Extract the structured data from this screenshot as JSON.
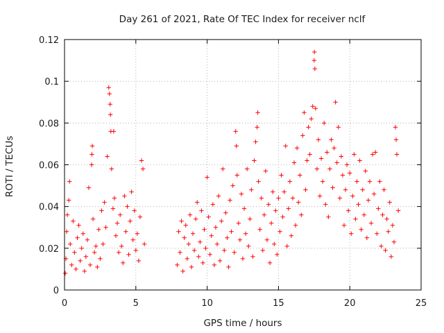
{
  "chart_data": {
    "type": "scatter",
    "title": "Day 261 of 2021, Rate Of TEC Index for receiver nclf",
    "xlabel": "GPS time / hours",
    "ylabel": "ROTI / TECUs",
    "xlim": [
      0,
      25
    ],
    "ylim": [
      0,
      0.12
    ],
    "x_ticks": [
      0,
      5,
      10,
      15,
      20,
      25
    ],
    "x_tick_labels": [
      "0",
      "5",
      "10",
      "15",
      "20",
      "25"
    ],
    "y_ticks": [
      0,
      0.02,
      0.04,
      0.06,
      0.08,
      0.1,
      0.12
    ],
    "y_tick_labels": [
      "0",
      "0.02",
      "0.04",
      "0.06",
      "0.08",
      "0.1",
      "0.12"
    ],
    "grid": true,
    "marker": "+",
    "color": "#ff0000",
    "data_gap_hours": [
      5.7,
      7.8
    ],
    "series": [
      {
        "name": "ROTI nclf",
        "note": "dense point cloud; representative sample of visible points",
        "points": [
          [
            0.05,
            0.008
          ],
          [
            0.1,
            0.015
          ],
          [
            0.15,
            0.028
          ],
          [
            0.2,
            0.036
          ],
          [
            0.3,
            0.043
          ],
          [
            0.35,
            0.052
          ],
          [
            0.4,
            0.022
          ],
          [
            0.5,
            0.012
          ],
          [
            0.6,
            0.033
          ],
          [
            0.7,
            0.018
          ],
          [
            0.8,
            0.01
          ],
          [
            0.9,
            0.025
          ],
          [
            1.0,
            0.031
          ],
          [
            1.1,
            0.014
          ],
          [
            1.2,
            0.02
          ],
          [
            1.3,
            0.027
          ],
          [
            1.4,
            0.009
          ],
          [
            1.5,
            0.016
          ],
          [
            1.6,
            0.024
          ],
          [
            1.7,
            0.049
          ],
          [
            1.8,
            0.012
          ],
          [
            1.9,
            0.06
          ],
          [
            1.92,
            0.065
          ],
          [
            1.95,
            0.069
          ],
          [
            2.0,
            0.034
          ],
          [
            2.1,
            0.018
          ],
          [
            2.2,
            0.021
          ],
          [
            2.3,
            0.011
          ],
          [
            2.4,
            0.029
          ],
          [
            2.5,
            0.015
          ],
          [
            2.6,
            0.038
          ],
          [
            2.7,
            0.022
          ],
          [
            2.8,
            0.042
          ],
          [
            2.9,
            0.03
          ],
          [
            3.0,
            0.064
          ],
          [
            3.1,
            0.097
          ],
          [
            3.15,
            0.094
          ],
          [
            3.2,
            0.089
          ],
          [
            3.22,
            0.084
          ],
          [
            3.25,
            0.076
          ],
          [
            3.3,
            0.058
          ],
          [
            3.4,
            0.039
          ],
          [
            3.45,
            0.076
          ],
          [
            3.5,
            0.044
          ],
          [
            3.6,
            0.026
          ],
          [
            3.7,
            0.032
          ],
          [
            3.8,
            0.018
          ],
          [
            3.9,
            0.036
          ],
          [
            4.0,
            0.021
          ],
          [
            4.1,
            0.013
          ],
          [
            4.2,
            0.045
          ],
          [
            4.3,
            0.028
          ],
          [
            4.4,
            0.04
          ],
          [
            4.5,
            0.017
          ],
          [
            4.6,
            0.033
          ],
          [
            4.7,
            0.047
          ],
          [
            4.8,
            0.024
          ],
          [
            4.9,
            0.038
          ],
          [
            5.0,
            0.019
          ],
          [
            5.1,
            0.027
          ],
          [
            5.2,
            0.014
          ],
          [
            5.3,
            0.035
          ],
          [
            5.4,
            0.062
          ],
          [
            5.5,
            0.058
          ],
          [
            5.6,
            0.022
          ],
          [
            7.9,
            0.012
          ],
          [
            8.0,
            0.028
          ],
          [
            8.1,
            0.018
          ],
          [
            8.2,
            0.033
          ],
          [
            8.3,
            0.009
          ],
          [
            8.4,
            0.025
          ],
          [
            8.5,
            0.031
          ],
          [
            8.6,
            0.015
          ],
          [
            8.7,
            0.022
          ],
          [
            8.8,
            0.036
          ],
          [
            8.9,
            0.011
          ],
          [
            9.0,
            0.027
          ],
          [
            9.1,
            0.019
          ],
          [
            9.2,
            0.034
          ],
          [
            9.3,
            0.042
          ],
          [
            9.4,
            0.016
          ],
          [
            9.5,
            0.023
          ],
          [
            9.6,
            0.038
          ],
          [
            9.7,
            0.013
          ],
          [
            9.8,
            0.029
          ],
          [
            9.9,
            0.02
          ],
          [
            10.0,
            0.054
          ],
          [
            10.1,
            0.035
          ],
          [
            10.2,
            0.017
          ],
          [
            10.3,
            0.026
          ],
          [
            10.4,
            0.041
          ],
          [
            10.5,
            0.012
          ],
          [
            10.6,
            0.03
          ],
          [
            10.7,
            0.022
          ],
          [
            10.8,
            0.045
          ],
          [
            10.9,
            0.014
          ],
          [
            11.0,
            0.033
          ],
          [
            11.1,
            0.058
          ],
          [
            11.2,
            0.019
          ],
          [
            11.3,
            0.037
          ],
          [
            11.4,
            0.025
          ],
          [
            11.5,
            0.011
          ],
          [
            11.6,
            0.043
          ],
          [
            11.7,
            0.028
          ],
          [
            11.8,
            0.05
          ],
          [
            11.9,
            0.018
          ],
          [
            12.0,
            0.076
          ],
          [
            12.05,
            0.069
          ],
          [
            12.1,
            0.055
          ],
          [
            12.2,
            0.032
          ],
          [
            12.3,
            0.024
          ],
          [
            12.4,
            0.046
          ],
          [
            12.5,
            0.015
          ],
          [
            12.6,
            0.039
          ],
          [
            12.7,
            0.027
          ],
          [
            12.8,
            0.058
          ],
          [
            12.9,
            0.021
          ],
          [
            13.0,
            0.034
          ],
          [
            13.1,
            0.048
          ],
          [
            13.2,
            0.016
          ],
          [
            13.3,
            0.062
          ],
          [
            13.4,
            0.071
          ],
          [
            13.5,
            0.078
          ],
          [
            13.55,
            0.085
          ],
          [
            13.6,
            0.052
          ],
          [
            13.7,
            0.029
          ],
          [
            13.8,
            0.044
          ],
          [
            13.9,
            0.019
          ],
          [
            14.0,
            0.036
          ],
          [
            14.1,
            0.057
          ],
          [
            14.2,
            0.024
          ],
          [
            14.3,
            0.041
          ],
          [
            14.4,
            0.013
          ],
          [
            14.5,
            0.032
          ],
          [
            14.6,
            0.047
          ],
          [
            14.7,
            0.022
          ],
          [
            14.8,
            0.038
          ],
          [
            14.9,
            0.017
          ],
          [
            15.0,
            0.044
          ],
          [
            15.1,
            0.028
          ],
          [
            15.2,
            0.055
          ],
          [
            15.3,
            0.035
          ],
          [
            15.4,
            0.047
          ],
          [
            15.5,
            0.069
          ],
          [
            15.6,
            0.021
          ],
          [
            15.7,
            0.039
          ],
          [
            15.8,
            0.052
          ],
          [
            15.9,
            0.026
          ],
          [
            16.0,
            0.044
          ],
          [
            16.1,
            0.061
          ],
          [
            16.2,
            0.031
          ],
          [
            16.3,
            0.068
          ],
          [
            16.4,
            0.042
          ],
          [
            16.5,
            0.055
          ],
          [
            16.6,
            0.036
          ],
          [
            16.7,
            0.074
          ],
          [
            16.8,
            0.085
          ],
          [
            16.9,
            0.048
          ],
          [
            17.0,
            0.062
          ],
          [
            17.1,
            0.078
          ],
          [
            17.2,
            0.065
          ],
          [
            17.3,
            0.082
          ],
          [
            17.4,
            0.088
          ],
          [
            17.5,
            0.11
          ],
          [
            17.52,
            0.114
          ],
          [
            17.55,
            0.106
          ],
          [
            17.6,
            0.087
          ],
          [
            17.7,
            0.058
          ],
          [
            17.8,
            0.072
          ],
          [
            17.9,
            0.045
          ],
          [
            18.0,
            0.063
          ],
          [
            18.1,
            0.052
          ],
          [
            18.2,
            0.08
          ],
          [
            18.3,
            0.041
          ],
          [
            18.4,
            0.066
          ],
          [
            18.5,
            0.035
          ],
          [
            18.6,
            0.058
          ],
          [
            18.7,
            0.072
          ],
          [
            18.8,
            0.049
          ],
          [
            18.9,
            0.068
          ],
          [
            19.0,
            0.09
          ],
          [
            19.1,
            0.061
          ],
          [
            19.2,
            0.078
          ],
          [
            19.3,
            0.044
          ],
          [
            19.4,
            0.064
          ],
          [
            19.5,
            0.055
          ],
          [
            19.6,
            0.031
          ],
          [
            19.7,
            0.048
          ],
          [
            19.8,
            0.06
          ],
          [
            19.9,
            0.038
          ],
          [
            20.0,
            0.056
          ],
          [
            20.1,
            0.027
          ],
          [
            20.2,
            0.045
          ],
          [
            20.3,
            0.065
          ],
          [
            20.4,
            0.034
          ],
          [
            20.5,
            0.052
          ],
          [
            20.6,
            0.041
          ],
          [
            20.7,
            0.062
          ],
          [
            20.8,
            0.029
          ],
          [
            20.9,
            0.048
          ],
          [
            21.0,
            0.036
          ],
          [
            21.1,
            0.057
          ],
          [
            21.2,
            0.025
          ],
          [
            21.3,
            0.043
          ],
          [
            21.4,
            0.052
          ],
          [
            21.5,
            0.032
          ],
          [
            21.6,
            0.065
          ],
          [
            21.7,
            0.046
          ],
          [
            21.8,
            0.066
          ],
          [
            21.9,
            0.027
          ],
          [
            22.0,
            0.039
          ],
          [
            22.1,
            0.052
          ],
          [
            22.2,
            0.021
          ],
          [
            22.3,
            0.036
          ],
          [
            22.4,
            0.048
          ],
          [
            22.5,
            0.019
          ],
          [
            22.6,
            0.034
          ],
          [
            22.7,
            0.028
          ],
          [
            22.8,
            0.042
          ],
          [
            22.9,
            0.016
          ],
          [
            23.0,
            0.031
          ],
          [
            23.1,
            0.023
          ],
          [
            23.2,
            0.078
          ],
          [
            23.25,
            0.072
          ],
          [
            23.3,
            0.065
          ],
          [
            23.4,
            0.038
          ]
        ]
      }
    ]
  }
}
